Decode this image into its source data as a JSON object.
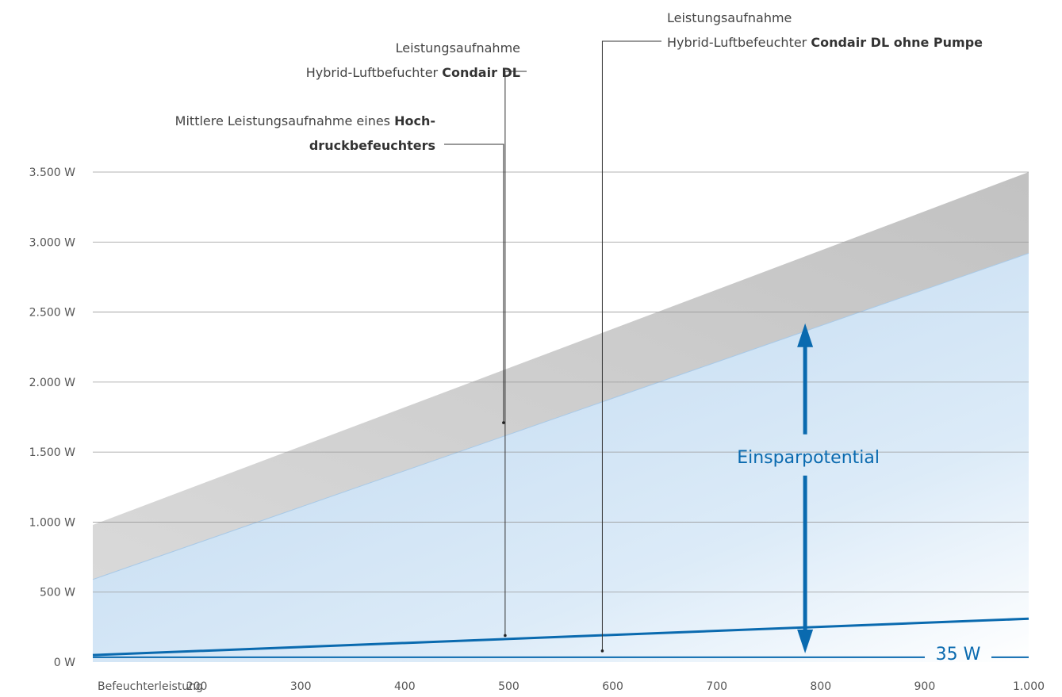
{
  "chart_data": {
    "type": "area",
    "x_axis": {
      "first_tick_label": "Befeuchterleistung",
      "tick_labels": [
        "200",
        "300",
        "400",
        "500",
        "600",
        "700",
        "800",
        "900",
        "1.000"
      ],
      "ticks": [
        200,
        300,
        400,
        500,
        600,
        700,
        800,
        900,
        1000
      ],
      "range": [
        100,
        1000
      ]
    },
    "y_axis": {
      "tick_labels": [
        "0 W",
        "500 W",
        "1.000 W",
        "1.500 W",
        "2.000 W",
        "2.500 W",
        "3.000 W",
        "3.500 W"
      ],
      "ticks": [
        0,
        500,
        1000,
        1500,
        2000,
        2500,
        3000,
        3500
      ],
      "range": [
        0,
        3500
      ]
    },
    "grid": true,
    "series": [
      {
        "key": "hochdruck_upper",
        "x": [
          100,
          1000
        ],
        "y": [
          980,
          3500
        ]
      },
      {
        "key": "hochdruck_lower",
        "x": [
          100,
          1000
        ],
        "y": [
          590,
          2920
        ]
      },
      {
        "key": "condair_dl",
        "x": [
          100,
          1000
        ],
        "y": [
          50,
          310
        ]
      },
      {
        "key": "condair_dl_ohne_pumpe",
        "x": [
          100,
          1000
        ],
        "y": [
          35,
          35
        ]
      }
    ],
    "annotations": {
      "hochdruck": {
        "line1_normal": "Mittlere Leistungsaufnahme eines ",
        "line1_bold": "Hoch-",
        "line2_bold": "druckbefeuchters",
        "point": [
          495,
          1710
        ]
      },
      "condair_dl": {
        "line1": "Leistungsaufnahme",
        "line2_normal": "Hybrid-Luftbefuchter ",
        "line2_bold": "Condair DL",
        "point": [
          495,
          190
        ]
      },
      "condair_dl_ohne_pumpe": {
        "line1": "Leistungsaufnahme",
        "line2_normal": "Hybrid-Luftbefeuchter ",
        "line2_bold": "Condair DL ohne Pumpe",
        "point": [
          590,
          35
        ]
      },
      "savings": {
        "label": "Einsparpotential",
        "x": 785,
        "y_top": 2420,
        "y_bottom": 35
      },
      "baseline_value": "35 W"
    },
    "colors": {
      "grey_band": "#c9c9c9",
      "blue_area": "#c4dcf2",
      "blue_line": "#0a6aaf",
      "grid": "#9a9a9a",
      "text": "#555555"
    }
  }
}
